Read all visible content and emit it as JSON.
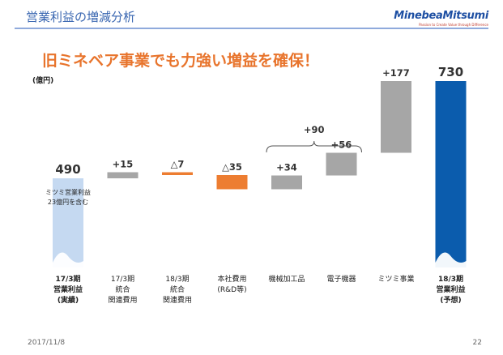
{
  "header": {
    "title": "営業利益の増減分析",
    "logo": "MinebeaMitsumi",
    "logo_tagline": "Passion to Create Value through Difference"
  },
  "headline": "旧ミネベア事業でも力強い増益を確保！",
  "footer": {
    "date": "2017/11/8",
    "page": "22"
  },
  "colors": {
    "start": "#c5d9f1",
    "end": "#0b5cad",
    "increase": "#a6a6a6",
    "decrease": "#ed7d31",
    "title": "#3a67b1",
    "headline": "#e8742c"
  },
  "chart_data": {
    "type": "bar",
    "subtype": "waterfall",
    "unit_label": "(億円)",
    "bars": [
      {
        "kind": "total",
        "value": 490,
        "label": "490",
        "category": [
          "17/3期",
          "営業利益",
          "(実績)"
        ],
        "note": [
          "ミツミ営業利益",
          "23億円を含む"
        ]
      },
      {
        "kind": "increase",
        "value": 15,
        "label": "+15",
        "category": [
          "17/3期",
          "統合",
          "関連費用"
        ]
      },
      {
        "kind": "decrease",
        "value": 7,
        "label": "△7",
        "category": [
          "18/3期",
          "統合",
          "関連費用"
        ]
      },
      {
        "kind": "decrease",
        "value": 35,
        "label": "△35",
        "category": [
          "本社費用",
          "(R&D等)"
        ]
      },
      {
        "kind": "increase",
        "value": 34,
        "label": "+34",
        "category": [
          "機械加工品"
        ]
      },
      {
        "kind": "increase",
        "value": 56,
        "label": "+56",
        "category": [
          "電子機器"
        ]
      },
      {
        "kind": "increase",
        "value": 177,
        "label": "+177",
        "category": [
          "ミツミ事業"
        ]
      },
      {
        "kind": "total",
        "value": 730,
        "label": "730",
        "category": [
          "18/3期",
          "営業利益",
          "(予想)"
        ]
      }
    ],
    "group_annotation": {
      "label": "+90",
      "from_bar": 4,
      "to_bar": 5
    }
  }
}
